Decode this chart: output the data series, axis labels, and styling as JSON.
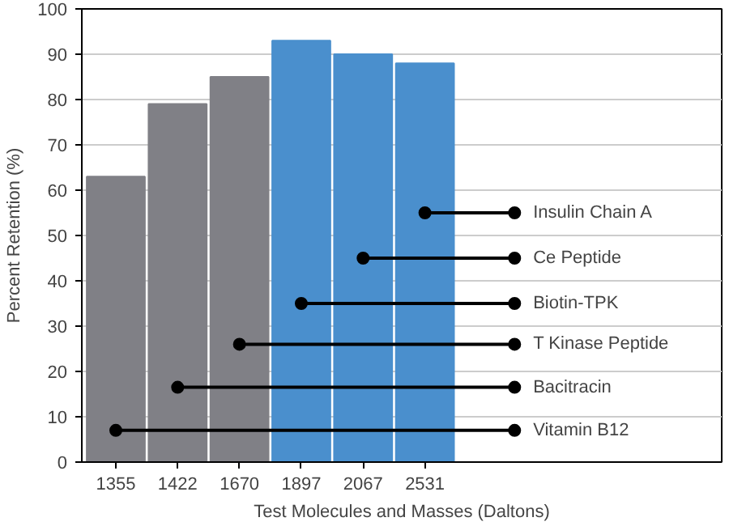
{
  "chart_data": {
    "type": "bar",
    "xlabel": "Test Molecules and Masses (Daltons)",
    "ylabel": "Percent Retention (%)",
    "categories": [
      "1355",
      "1422",
      "1670",
      "1897",
      "2067",
      "2531"
    ],
    "values": [
      63,
      79,
      85,
      93,
      90,
      88
    ],
    "colors": [
      "#808086",
      "#808086",
      "#808086",
      "#4a8fcd",
      "#4a8fcd",
      "#4a8fcd"
    ],
    "ylim": [
      0,
      100
    ],
    "yticks": [
      0,
      10,
      20,
      30,
      40,
      50,
      60,
      70,
      80,
      90,
      100
    ],
    "grid": "y",
    "annotations": [
      {
        "text": "Vitamin B12",
        "x": "1355",
        "y": 7
      },
      {
        "text": "Bacitracin",
        "x": "1422",
        "y": 16.5
      },
      {
        "text": "T Kinase Peptide",
        "x": "1670",
        "y": 26
      },
      {
        "text": "Biotin-TPK",
        "x": "1897",
        "y": 35
      },
      {
        "text": "Ce Peptide",
        "x": "2067",
        "y": 45
      },
      {
        "text": "Insulin Chain A",
        "x": "2531",
        "y": 55
      }
    ]
  }
}
